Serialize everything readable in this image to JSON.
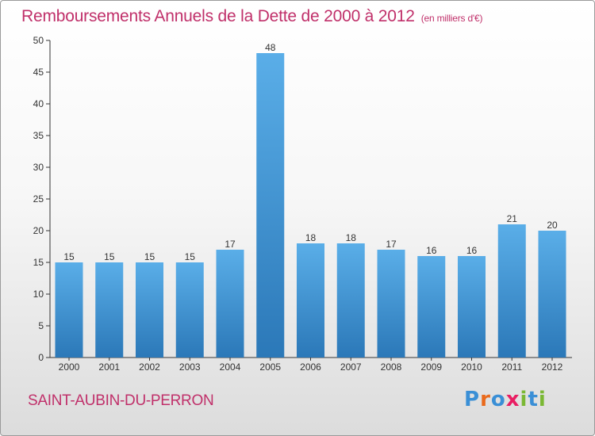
{
  "header": {
    "title": "Remboursements Annuels de la Dette de 2000 à 2012",
    "subtitle": "(en milliers d'€)"
  },
  "footer": {
    "commune": "SAINT-AUBIN-DU-PERRON",
    "logo_text": "Proxiti"
  },
  "colors": {
    "title": "#c0306a",
    "bar_top": "#5aaee8",
    "bar_bottom": "#2b78b8",
    "logo": [
      "#3a8fd6",
      "#e96a1c",
      "#3a8fd6",
      "#e91e63",
      "#7ab834",
      "#3a8fd6",
      "#7ab834"
    ]
  },
  "chart_data": {
    "type": "bar",
    "categories": [
      "2000",
      "2001",
      "2002",
      "2003",
      "2004",
      "2005",
      "2006",
      "2007",
      "2008",
      "2009",
      "2010",
      "2011",
      "2012"
    ],
    "values": [
      15,
      15,
      15,
      15,
      17,
      48,
      18,
      18,
      17,
      16,
      16,
      21,
      20
    ],
    "ylim": [
      0,
      50
    ],
    "yticks": [
      0,
      5,
      10,
      15,
      20,
      25,
      30,
      35,
      40,
      45,
      50
    ],
    "grid": false,
    "title": "Remboursements Annuels de la Dette de 2000 à 2012",
    "xlabel": "",
    "ylabel": ""
  }
}
